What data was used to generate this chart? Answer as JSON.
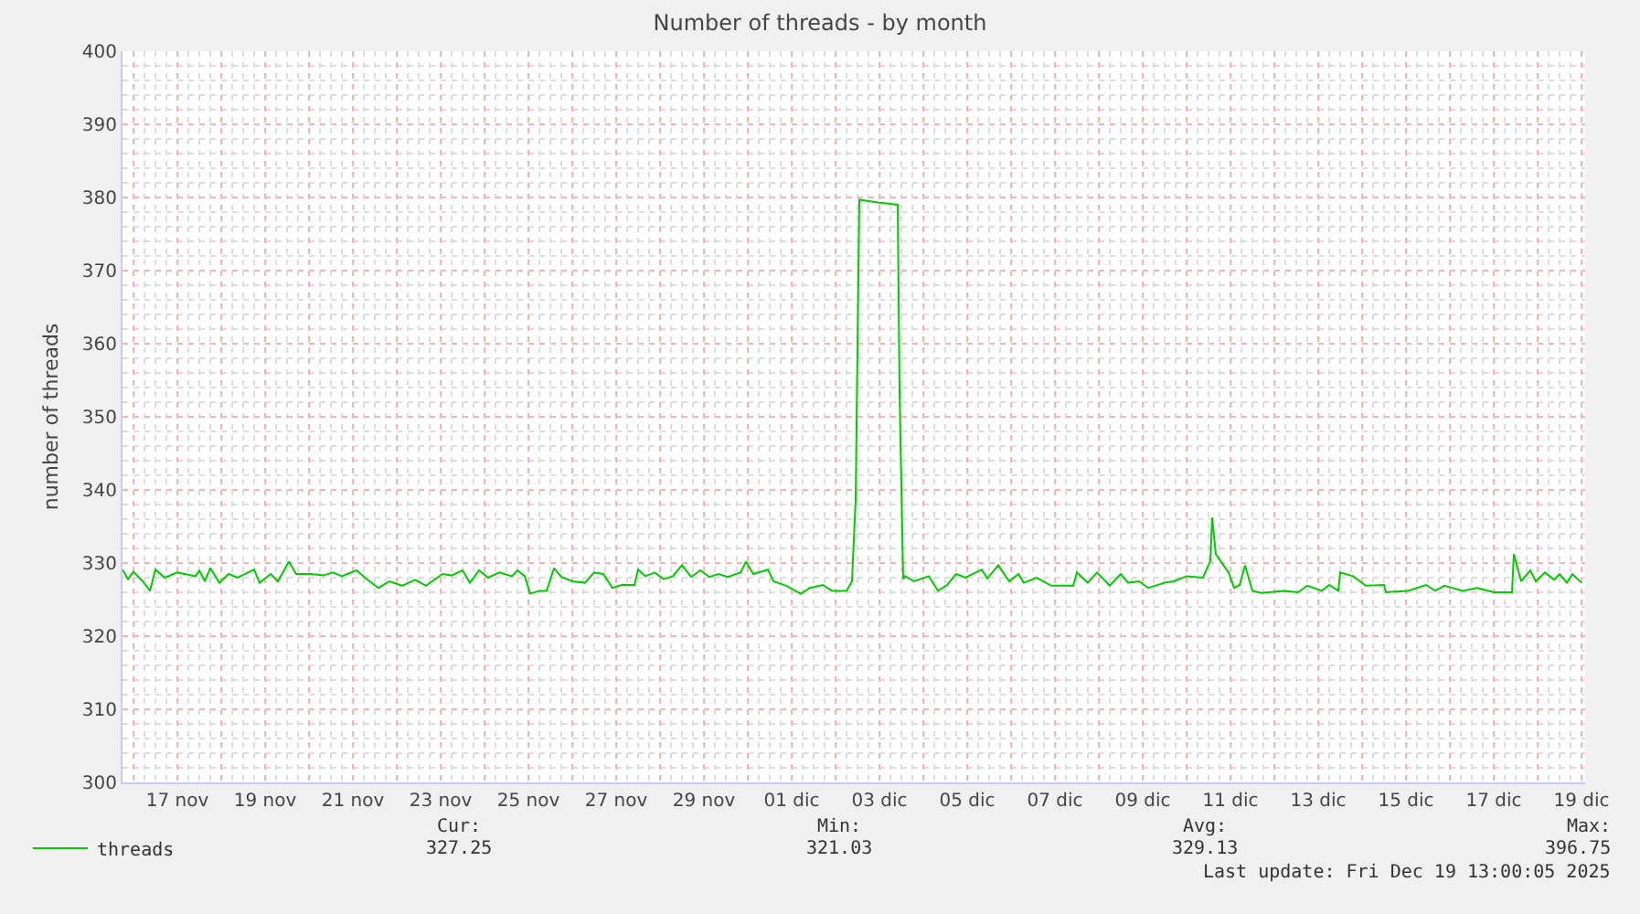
{
  "chart_data": {
    "type": "line",
    "title": "Number of threads - by month",
    "ylabel": "number of threads",
    "x": [
      "2025-11-15T18:00",
      "2025-11-15T21:00",
      "2025-11-16T00:00",
      "2025-11-16T05:00",
      "2025-11-16T09:00",
      "2025-11-16T12:00",
      "2025-11-16T17:00",
      "2025-11-17T00:00",
      "2025-11-17T10:00",
      "2025-11-17T12:00",
      "2025-11-17T15:00",
      "2025-11-17T18:00",
      "2025-11-17T23:00",
      "2025-11-18T04:00",
      "2025-11-18T09:00",
      "2025-11-18T18:00",
      "2025-11-18T21:00",
      "2025-11-19T03:00",
      "2025-11-19T07:00",
      "2025-11-19T13:00",
      "2025-11-19T17:00",
      "2025-11-20T01:00",
      "2025-11-20T08:00",
      "2025-11-20T13:00",
      "2025-11-20T18:00",
      "2025-11-21T02:00",
      "2025-11-21T07:00",
      "2025-11-21T14:00",
      "2025-11-21T20:00",
      "2025-11-22T03:00",
      "2025-11-22T10:00",
      "2025-11-22T16:00",
      "2025-11-23T01:00",
      "2025-11-23T06:00",
      "2025-11-23T12:00",
      "2025-11-23T16:00",
      "2025-11-23T21:00",
      "2025-11-24T02:00",
      "2025-11-24T08:00",
      "2025-11-24T15:00",
      "2025-11-24T18:00",
      "2025-11-24T22:00",
      "2025-11-25T01:00",
      "2025-11-25T06:00",
      "2025-11-25T10:00",
      "2025-11-25T14:00",
      "2025-11-25T18:00",
      "2025-11-26T00:00",
      "2025-11-26T07:00",
      "2025-11-26T12:00",
      "2025-11-26T17:00",
      "2025-11-26T22:00",
      "2025-11-27T03:00",
      "2025-11-27T10:00",
      "2025-11-27T12:00",
      "2025-11-27T16:00",
      "2025-11-27T21:00",
      "2025-11-28T02:00",
      "2025-11-28T07:00",
      "2025-11-28T12:00",
      "2025-11-28T17:00",
      "2025-11-28T22:00",
      "2025-11-29T03:00",
      "2025-11-29T08:00",
      "2025-11-29T13:00",
      "2025-11-29T20:00",
      "2025-11-29T23:00",
      "2025-11-30T03:00",
      "2025-11-30T11:00",
      "2025-11-30T14:00",
      "2025-11-30T21:00",
      "2025-12-01T05:00",
      "2025-12-01T10:00",
      "2025-12-01T17:00",
      "2025-12-01T22:00",
      "2025-12-02T06:00",
      "2025-12-02T09:00",
      "2025-12-02T11:00",
      "2025-12-02T13:00",
      "2025-12-02T23:00",
      "2025-12-03T10:00",
      "2025-12-03T11:00",
      "2025-12-03T13:00",
      "2025-12-03T14:00",
      "2025-12-03T19:00",
      "2025-12-04T03:00",
      "2025-12-04T08:00",
      "2025-12-04T13:00",
      "2025-12-04T18:00",
      "2025-12-04T23:00",
      "2025-12-05T08:00",
      "2025-12-05T11:00",
      "2025-12-05T17:00",
      "2025-12-05T23:00",
      "2025-12-06T04:00",
      "2025-12-06T07:00",
      "2025-12-06T14:00",
      "2025-12-06T22:00",
      "2025-12-07T10:00",
      "2025-12-07T12:00",
      "2025-12-07T18:00",
      "2025-12-07T23:00",
      "2025-12-08T06:00",
      "2025-12-08T12:00",
      "2025-12-08T16:00",
      "2025-12-08T22:00",
      "2025-12-09T03:00",
      "2025-12-09T12:00",
      "2025-12-09T17:00",
      "2025-12-10T00:00",
      "2025-12-10T09:00",
      "2025-12-10T13:00",
      "2025-12-10T14:00",
      "2025-12-10T16:00",
      "2025-12-10T23:00",
      "2025-12-11T02:00",
      "2025-12-11T05:00",
      "2025-12-11T08:00",
      "2025-12-11T12:00",
      "2025-12-11T17:00",
      "2025-12-12T05:00",
      "2025-12-12T13:00",
      "2025-12-12T18:00",
      "2025-12-13T02:00",
      "2025-12-13T06:00",
      "2025-12-13T11:00",
      "2025-12-13T12:00",
      "2025-12-13T19:00",
      "2025-12-14T02:00",
      "2025-12-14T12:00",
      "2025-12-14T13:00",
      "2025-12-15T01:00",
      "2025-12-15T11:00",
      "2025-12-15T16:00",
      "2025-12-15T21:00",
      "2025-12-16T07:00",
      "2025-12-16T15:00",
      "2025-12-17T00:00",
      "2025-12-17T10:00",
      "2025-12-17T11:00",
      "2025-12-17T15:00",
      "2025-12-17T20:00",
      "2025-12-17T23:00",
      "2025-12-18T04:00",
      "2025-12-18T09:00",
      "2025-12-18T12:00",
      "2025-12-18T16:00",
      "2025-12-18T19:00",
      "2025-12-19T00:00"
    ],
    "series": [
      {
        "name": "threads",
        "color": "#00cc00",
        "values": [
          329.1,
          327.8,
          328.8,
          327.5,
          326.2,
          329.1,
          328,
          328.7,
          328.2,
          329,
          327.5,
          329.3,
          327.3,
          328.5,
          328,
          329.1,
          327.3,
          328.5,
          327.5,
          330.2,
          328.5,
          328.5,
          328.3,
          328.7,
          328.2,
          329,
          327.9,
          326.6,
          327.5,
          326.9,
          327.7,
          326.9,
          328.5,
          328.3,
          329,
          327.3,
          329,
          328,
          328.7,
          328.2,
          329,
          328.2,
          325.8,
          326.2,
          326.2,
          329.3,
          328.1,
          327.5,
          327.3,
          328.7,
          328.5,
          326.6,
          327,
          327,
          329.1,
          328.2,
          328.7,
          327.8,
          328.2,
          329.7,
          328.1,
          329,
          328.1,
          328.5,
          328.1,
          328.7,
          330.2,
          328.5,
          329.1,
          327.5,
          326.9,
          325.8,
          326.6,
          327,
          326.2,
          326.2,
          327.5,
          338.7,
          379.7,
          379.3,
          379,
          353.5,
          327.8,
          328.2,
          327.5,
          328.2,
          326.2,
          327,
          328.5,
          328,
          329.1,
          327.9,
          329.7,
          327.5,
          328.5,
          327.3,
          328,
          326.9,
          326.9,
          328.7,
          327.3,
          328.7,
          326.9,
          328.5,
          327.3,
          327.5,
          326.6,
          327.3,
          327.5,
          328.2,
          328,
          330.3,
          336.2,
          331.2,
          328.7,
          326.6,
          327,
          329.7,
          326.2,
          325.9,
          326.2,
          326,
          326.9,
          326.2,
          327,
          326.2,
          328.7,
          328.2,
          326.9,
          327,
          326,
          326.2,
          327,
          326.2,
          326.9,
          326.2,
          326.6,
          326,
          326,
          331.2,
          327.5,
          329,
          327.5,
          328.7,
          327.7,
          328.5,
          327.3,
          328.5,
          327.3
        ]
      }
    ],
    "xlim": [
      "2025-11-15T18:00",
      "2025-12-19T02:00"
    ],
    "xticks": [
      {
        "value": "2025-11-16",
        "label": null
      },
      {
        "value": "2025-11-17",
        "label": "17 nov"
      },
      {
        "value": "2025-11-18",
        "label": null
      },
      {
        "value": "2025-11-19",
        "label": "19 nov"
      },
      {
        "value": "2025-11-20",
        "label": null
      },
      {
        "value": "2025-11-21",
        "label": "21 nov"
      },
      {
        "value": "2025-11-22",
        "label": null
      },
      {
        "value": "2025-11-23",
        "label": "23 nov"
      },
      {
        "value": "2025-11-24",
        "label": null
      },
      {
        "value": "2025-11-25",
        "label": "25 nov"
      },
      {
        "value": "2025-11-26",
        "label": null
      },
      {
        "value": "2025-11-27",
        "label": "27 nov"
      },
      {
        "value": "2025-11-28",
        "label": null
      },
      {
        "value": "2025-11-29",
        "label": "29 nov"
      },
      {
        "value": "2025-11-30",
        "label": null
      },
      {
        "value": "2025-12-01",
        "label": "01 dic"
      },
      {
        "value": "2025-12-02",
        "label": null
      },
      {
        "value": "2025-12-03",
        "label": "03 dic"
      },
      {
        "value": "2025-12-04",
        "label": null
      },
      {
        "value": "2025-12-05",
        "label": "05 dic"
      },
      {
        "value": "2025-12-06",
        "label": null
      },
      {
        "value": "2025-12-07",
        "label": "07 dic"
      },
      {
        "value": "2025-12-08",
        "label": null
      },
      {
        "value": "2025-12-09",
        "label": "09 dic"
      },
      {
        "value": "2025-12-10",
        "label": null
      },
      {
        "value": "2025-12-11",
        "label": "11 dic"
      },
      {
        "value": "2025-12-12",
        "label": null
      },
      {
        "value": "2025-12-13",
        "label": "13 dic"
      },
      {
        "value": "2025-12-14",
        "label": null
      },
      {
        "value": "2025-12-15",
        "label": "15 dic"
      },
      {
        "value": "2025-12-16",
        "label": null
      },
      {
        "value": "2025-12-17",
        "label": "17 dic"
      },
      {
        "value": "2025-12-18",
        "label": null
      },
      {
        "value": "2025-12-19",
        "label": "19 dic"
      }
    ],
    "ylim": [
      300,
      400
    ],
    "yticks": [
      300,
      310,
      320,
      330,
      340,
      350,
      360,
      370,
      380,
      390,
      400
    ],
    "grid": true,
    "legend": "bottom left",
    "marker": "none",
    "line_style": "solid",
    "annotations": [
      "Cur:",
      "327.25",
      "Min:",
      "321.03",
      "Avg:",
      "329.13",
      "Max:",
      "396.75",
      "Last update: Fri Dec 19 13:00:05 2025"
    ]
  }
}
